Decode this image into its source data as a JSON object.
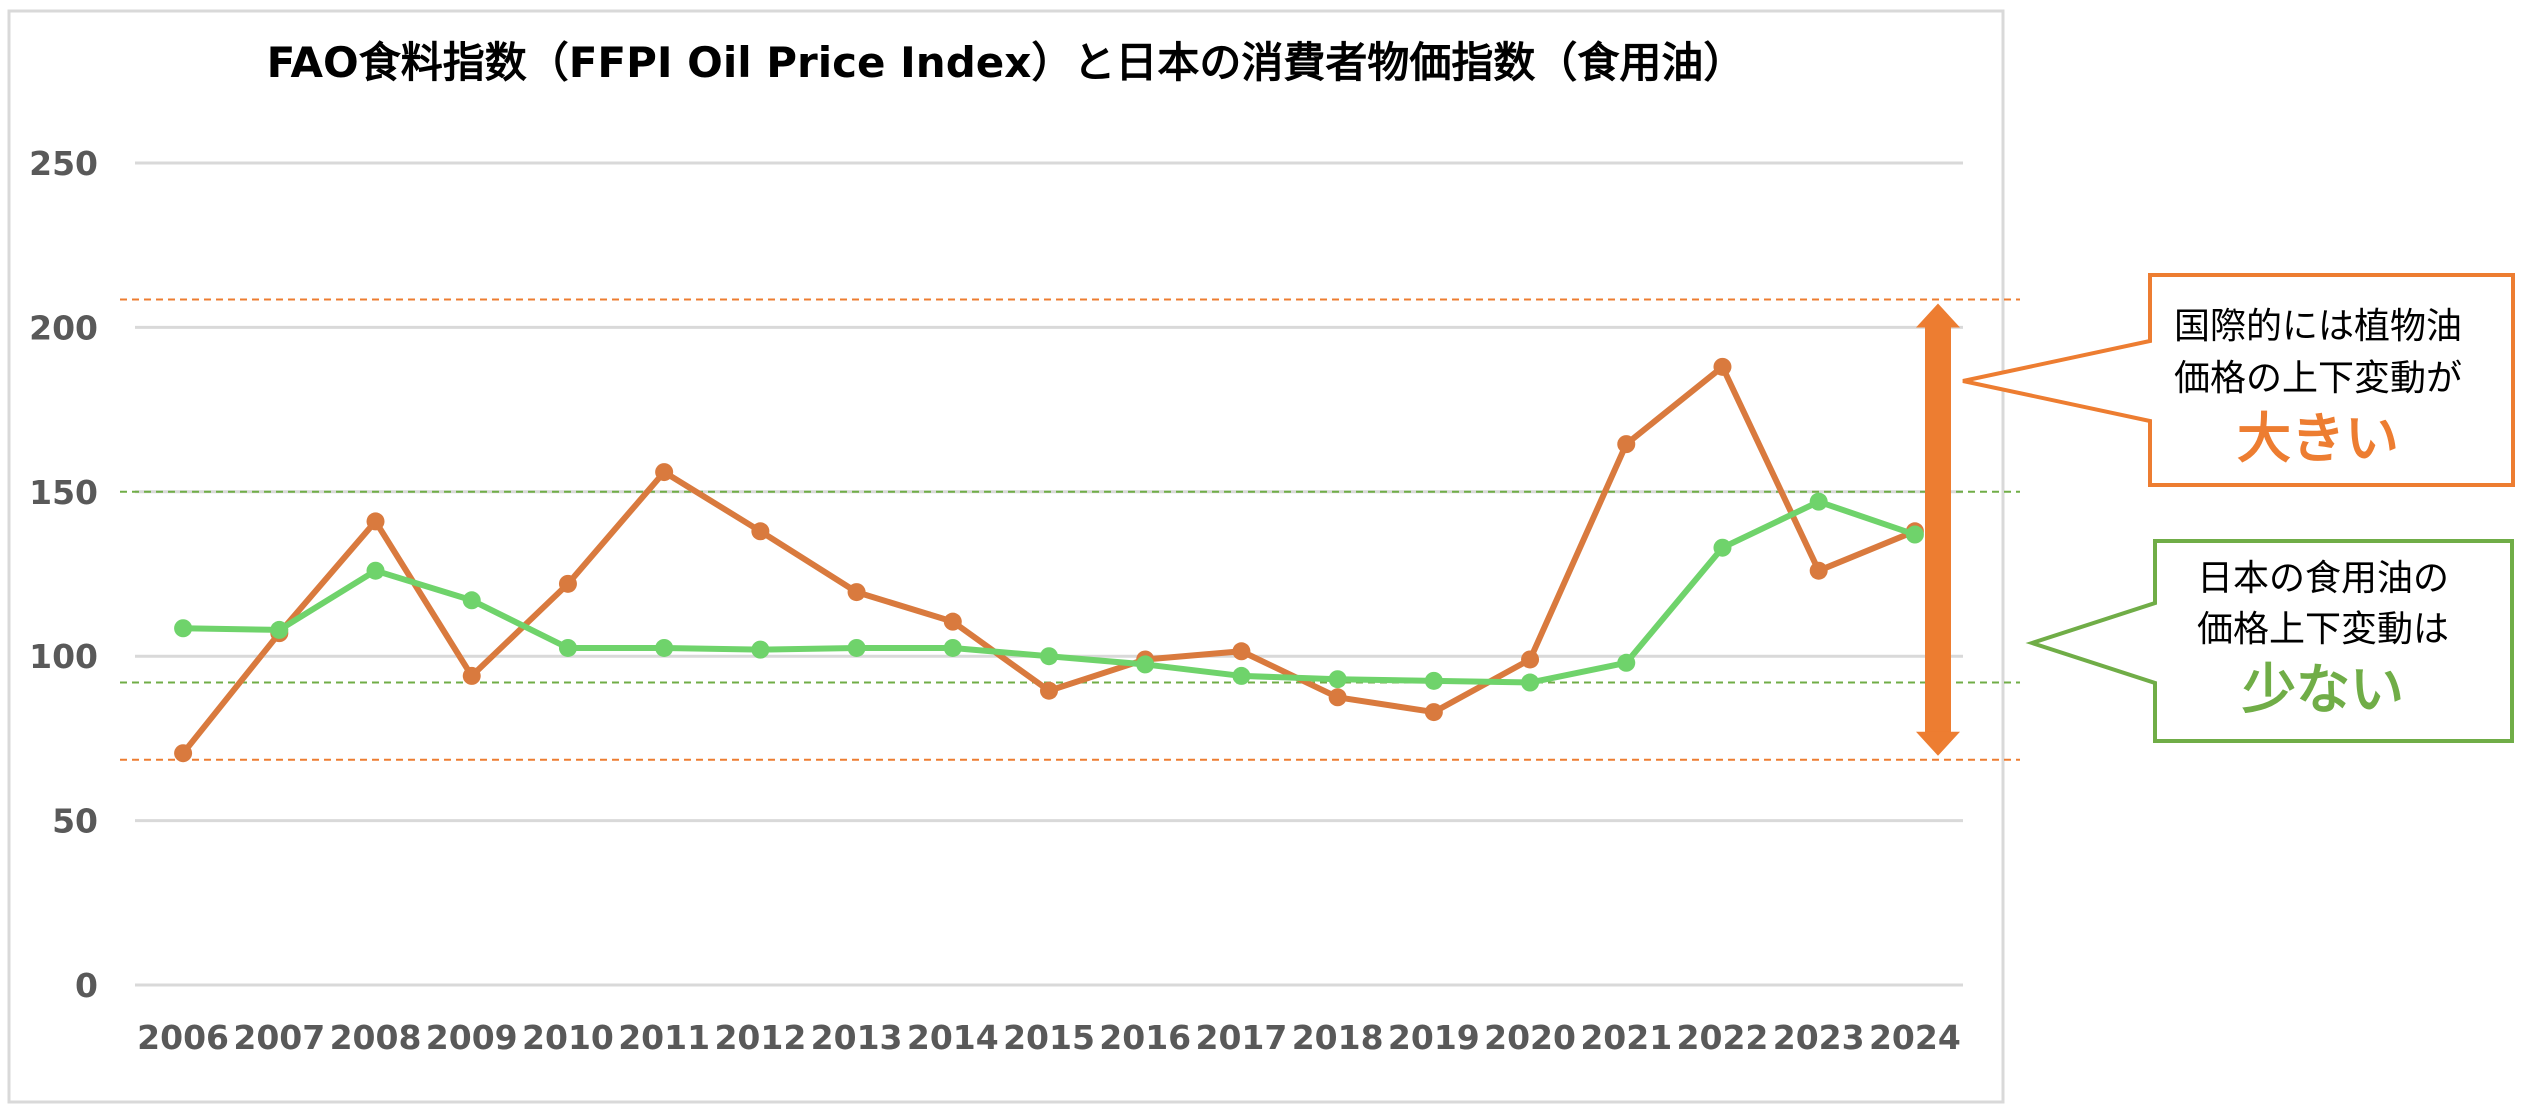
{
  "chart_data": {
    "type": "line",
    "title": "FAO食料指数（FFPI Oil Price Index）と日本の消費者物価指数（食用油）",
    "categories": [
      "2006",
      "2007",
      "2008",
      "2009",
      "2010",
      "2011",
      "2012",
      "2013",
      "2014",
      "2015",
      "2016",
      "2017",
      "2018",
      "2019",
      "2020",
      "2021",
      "2022",
      "2023",
      "2024"
    ],
    "series": [
      {
        "color": "#D97A3E",
        "values": [
          70.5,
          107,
          141,
          94,
          122,
          156,
          138,
          119.5,
          110.5,
          89.5,
          99,
          101.5,
          87.5,
          83,
          99,
          164.5,
          188,
          126,
          138
        ]
      },
      {
        "color": "#6FD36B",
        "values": [
          108.5,
          108,
          126,
          117,
          102.5,
          102.5,
          102,
          102.5,
          102.5,
          100,
          97.5,
          94,
          93,
          92.5,
          92,
          98,
          133,
          147,
          137
        ]
      }
    ],
    "ylim": [
      0,
      250
    ],
    "yticks": [
      0,
      50,
      100,
      150,
      200,
      250
    ],
    "grid": true,
    "xlabel": "",
    "ylabel": "",
    "reference_lines": [
      {
        "value": 208.5,
        "color": "#ED7D31"
      },
      {
        "value": 68.5,
        "color": "#ED7D31"
      },
      {
        "value": 150,
        "color": "#70AD47"
      },
      {
        "value": 92,
        "color": "#70AD47"
      }
    ],
    "range_arrow": {
      "from": 68.5,
      "to": 208.5,
      "color": "#ED7D31"
    }
  },
  "callouts": {
    "intl": {
      "line1": "国際的には植物油",
      "line2": "価格の上下変動が",
      "emphasis": "大きい",
      "color": "#ED7D31"
    },
    "japan": {
      "line1": "日本の食用油の",
      "line2": "価格上下変動は",
      "emphasis": "少ない",
      "color": "#70AD47"
    }
  }
}
